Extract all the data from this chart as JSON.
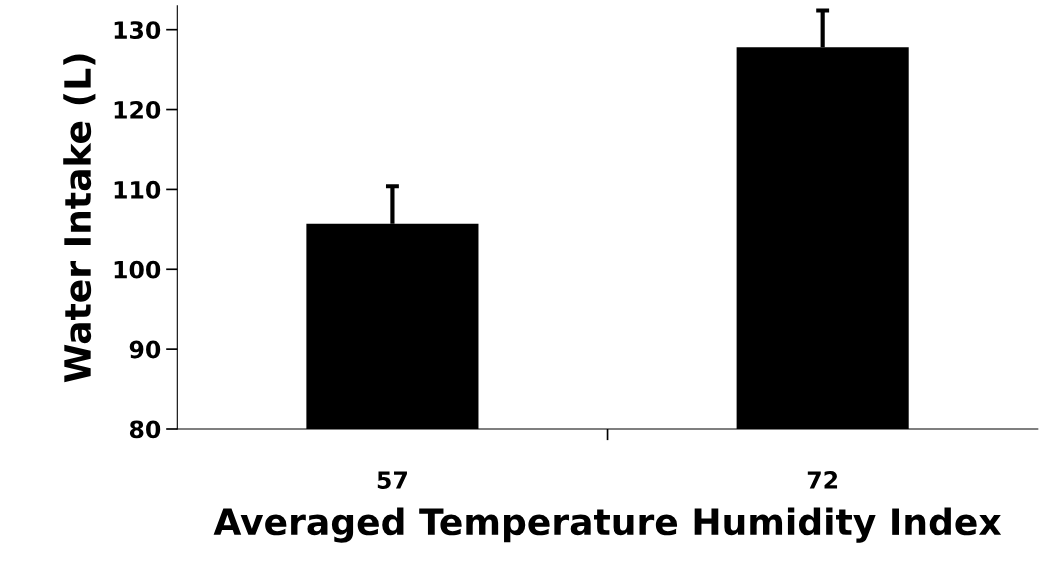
{
  "chart_data": {
    "type": "bar",
    "xlabel": "Averaged Temperature Humidity Index",
    "ylabel": "Water Intake (L)",
    "categories": [
      "57",
      "72"
    ],
    "values": [
      105.7,
      127.8
    ],
    "errors": [
      [
        105.7,
        110.4
      ],
      [
        127.8,
        132.4
      ]
    ],
    "color": "#000000",
    "ylim": [
      80,
      133
    ],
    "yticks": [
      80,
      90,
      100,
      110,
      120,
      130
    ],
    "grid": false
  }
}
